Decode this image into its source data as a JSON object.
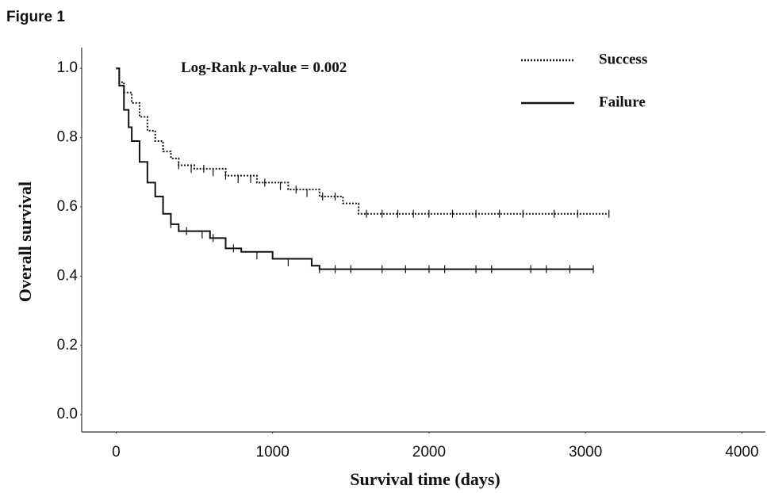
{
  "chart_data": {
    "type": "step",
    "title": "Figure 1",
    "annotation": [
      "Log-Rank ",
      "p",
      "-value = 0.002"
    ],
    "xlabel": "Survival time (days)",
    "ylabel": "Overall survival",
    "xlim": [
      -220,
      4150
    ],
    "ylim": [
      -0.05,
      1.06
    ],
    "xticks": [
      0,
      1000,
      2000,
      3000,
      4000
    ],
    "yticks": [
      {
        "value": 0,
        "label": "0.0"
      },
      0.2,
      0.4,
      0.6,
      0.8,
      {
        "value": 1,
        "label": "1.0"
      }
    ],
    "grid": false,
    "legend": "upper right",
    "series": [
      {
        "name": "Success",
        "color": "#111111",
        "dash": "dotted",
        "x": [
          0,
          20,
          50,
          100,
          150,
          200,
          250,
          300,
          350,
          400,
          500,
          700,
          900,
          1100,
          1300,
          1450,
          1550,
          3150
        ],
        "values": [
          1.0,
          0.96,
          0.93,
          0.9,
          0.86,
          0.82,
          0.79,
          0.76,
          0.74,
          0.72,
          0.71,
          0.69,
          0.67,
          0.65,
          0.63,
          0.61,
          0.58,
          0.58
        ],
        "censor_x": [
          400,
          480,
          560,
          620,
          700,
          780,
          860,
          950,
          1050,
          1150,
          1220,
          1320,
          1400,
          1600,
          1700,
          1800,
          1900,
          2000,
          2150,
          2300,
          2450,
          2600,
          2800,
          2950,
          3150
        ],
        "censor_y": [
          0.72,
          0.71,
          0.71,
          0.7,
          0.69,
          0.68,
          0.68,
          0.67,
          0.66,
          0.65,
          0.64,
          0.63,
          0.63,
          0.58,
          0.58,
          0.58,
          0.58,
          0.58,
          0.58,
          0.58,
          0.58,
          0.58,
          0.58,
          0.58,
          0.58
        ]
      },
      {
        "name": "Failure",
        "color": "#111111",
        "dash": "solid",
        "x": [
          0,
          20,
          50,
          80,
          100,
          150,
          200,
          250,
          300,
          350,
          400,
          600,
          700,
          800,
          1000,
          1250,
          1300,
          3050
        ],
        "values": [
          1.0,
          0.95,
          0.88,
          0.83,
          0.79,
          0.73,
          0.67,
          0.63,
          0.58,
          0.55,
          0.53,
          0.51,
          0.48,
          0.47,
          0.45,
          0.43,
          0.42,
          0.42
        ],
        "censor_x": [
          350,
          450,
          550,
          620,
          750,
          900,
          1100,
          1300,
          1400,
          1500,
          1700,
          1850,
          2000,
          2100,
          2300,
          2400,
          2650,
          2750,
          2900,
          3050
        ],
        "censor_y": [
          0.55,
          0.53,
          0.52,
          0.51,
          0.48,
          0.46,
          0.44,
          0.42,
          0.42,
          0.42,
          0.42,
          0.42,
          0.42,
          0.42,
          0.42,
          0.42,
          0.42,
          0.42,
          0.42,
          0.42
        ]
      }
    ]
  }
}
